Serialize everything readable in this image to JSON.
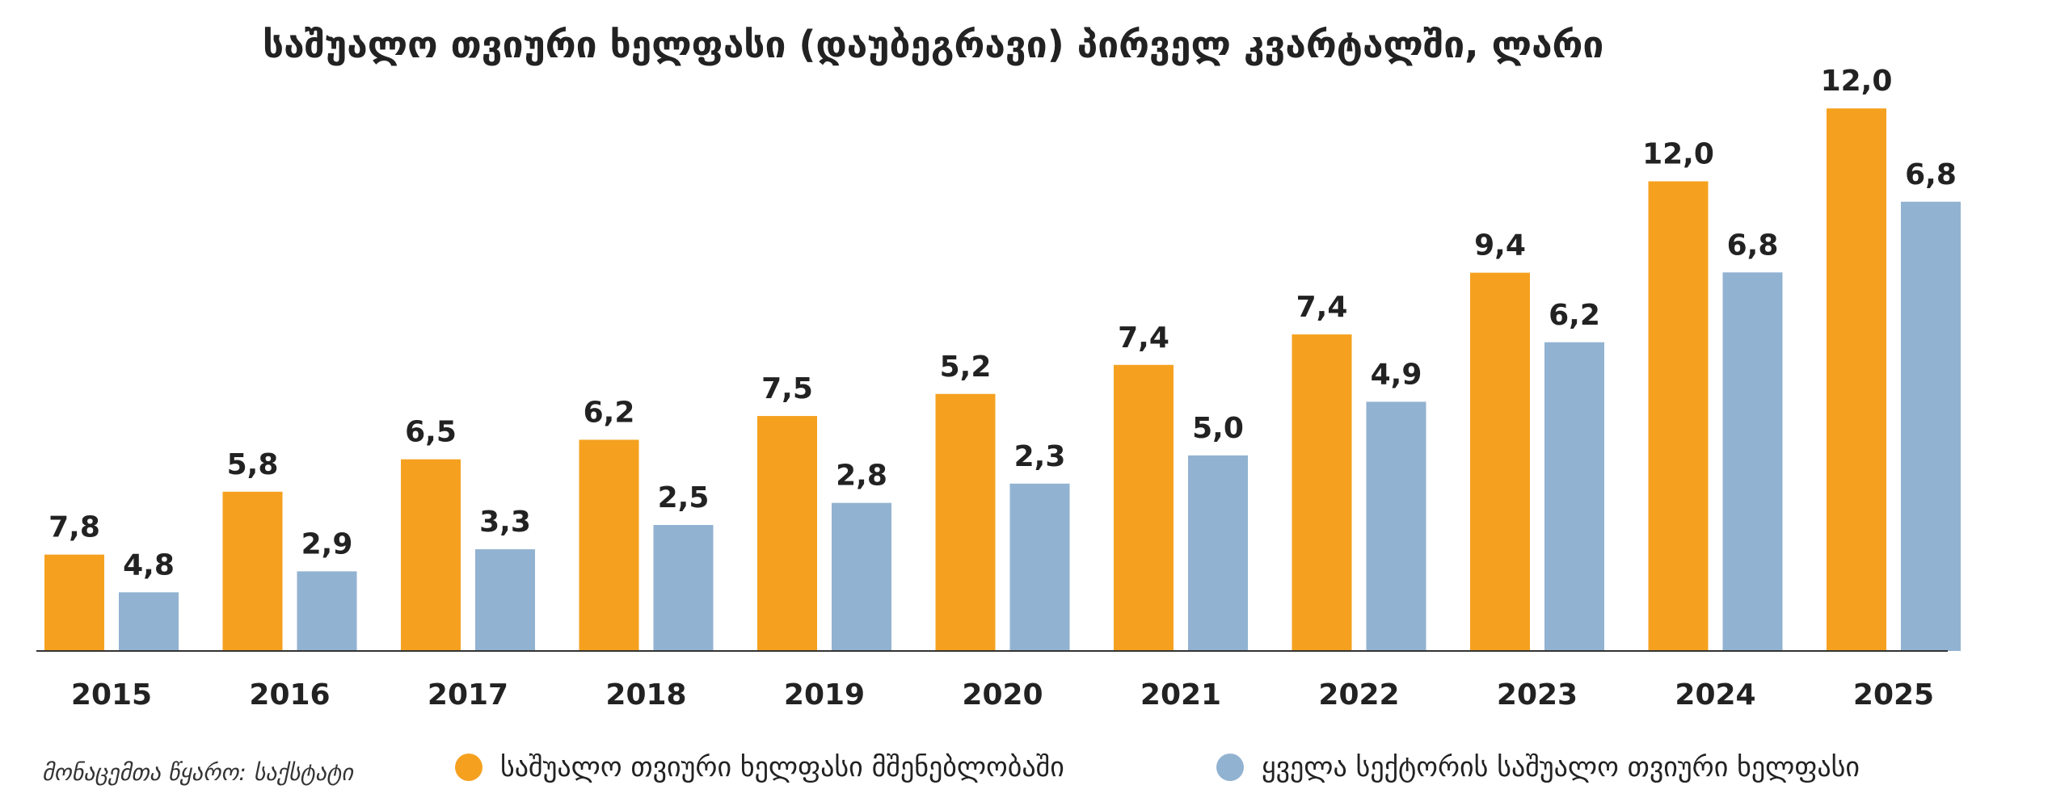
{
  "chart_data": {
    "type": "bar",
    "title": "საშუალო თვიური ხელფასი (დაუბეგრავი) პირველ კვარტალში, ლარი",
    "categories": [
      "2015",
      "2016",
      "2017",
      "2018",
      "2019",
      "2020",
      "2021",
      "2022",
      "2023",
      "2024",
      "2025"
    ],
    "series": [
      {
        "name": "საშუალო თვიური ხელფასი მშენებლობაში",
        "color": "#F5A11F",
        "values": [
          785,
          1010,
          1126,
          1196,
          1281,
          1360,
          1464,
          1573,
          1794,
          2121,
          2382
        ],
        "labels": [
          "7,8",
          "5,8",
          "6,5",
          "6,2",
          "7,5",
          "5,2",
          "7,4",
          "7,4",
          "9,4",
          "12,0",
          "12,0"
        ]
      },
      {
        "name": "ყველა სექტორის საშუალო თვიური ხელფასი",
        "color": "#92B2D1",
        "values": [
          650,
          725,
          804,
          891,
          970,
          1039,
          1140,
          1332,
          1545,
          1795,
          2048
        ],
        "labels": [
          "4,8",
          "2,9",
          "3,3",
          "2,5",
          "2,8",
          "2,3",
          "5,0",
          "4,9",
          "6,2",
          "6,8",
          "6,8"
        ]
      }
    ],
    "ylim": [
      440,
      2400
    ],
    "grid": false,
    "legend": "bottom"
  },
  "source": "მონაცემთა წყარო: საქსტატი"
}
